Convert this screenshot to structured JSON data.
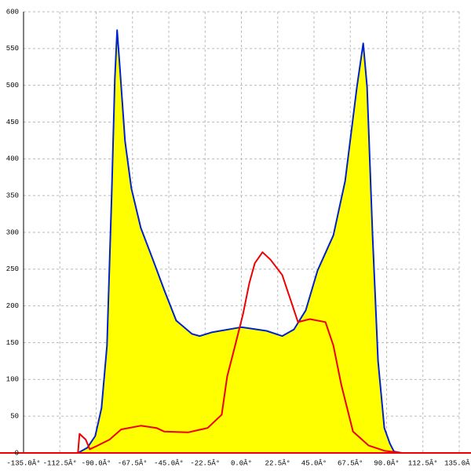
{
  "chart_data": {
    "type": "area",
    "xlim": [
      -135,
      135
    ],
    "ylim": [
      0,
      600
    ],
    "xticks": [
      {
        "value": -135,
        "label": "-135.0Â°"
      },
      {
        "value": -112.5,
        "label": "-112.5Â°"
      },
      {
        "value": -90,
        "label": "-90.0Â°"
      },
      {
        "value": -67.5,
        "label": "-67.5Â°"
      },
      {
        "value": -45,
        "label": "-45.0Â°"
      },
      {
        "value": -22.5,
        "label": "-22.5Â°"
      },
      {
        "value": 0,
        "label": "0.0Â°"
      },
      {
        "value": 22.5,
        "label": "22.5Â°"
      },
      {
        "value": 45,
        "label": "45.0Â°"
      },
      {
        "value": 67.5,
        "label": "67.5Â°"
      },
      {
        "value": 90,
        "label": "90.0Â°"
      },
      {
        "value": 112.5,
        "label": "112.5Â°"
      },
      {
        "value": 135,
        "label": "135.0Â°"
      }
    ],
    "yticks": [
      0,
      50,
      100,
      150,
      200,
      250,
      300,
      350,
      400,
      450,
      500,
      550,
      600
    ],
    "grid": true,
    "series": [
      {
        "color": "#0022cc",
        "fill_color": "#ffff00",
        "x": [
          -101.3,
          -95.5,
          -90.6,
          -86.7,
          -83.3,
          -80.4,
          -78.4,
          -77,
          -75.5,
          -72.1,
          -68.2,
          -62.3,
          -55,
          -47.7,
          -40.4,
          -30.7,
          -25.8,
          -18.5,
          0,
          15.6,
          25.3,
          32.6,
          39.9,
          47.2,
          57,
          64.3,
          71.6,
          75.5,
          77.9,
          81.3,
          84.7,
          88.6,
          92,
          94.5,
          99.4
        ],
        "values": [
          0,
          7,
          23,
          61,
          146,
          349,
          509,
          575,
          530,
          424,
          360,
          306,
          264,
          221,
          180,
          162,
          159,
          164,
          171,
          166,
          159,
          168,
          194,
          248,
          296,
          370,
          498,
          557,
          498,
          296,
          125,
          34,
          13,
          2,
          0
        ]
      },
      {
        "color": "#ee0000",
        "x": [
          -101.3,
          -100.3,
          -96.4,
          -94,
          -89.1,
          -81.8,
          -74.5,
          -62.3,
          -52.6,
          -47.7,
          -33.1,
          -20.9,
          -12.2,
          -8.8,
          -3.9,
          1,
          4.9,
          8.3,
          13.1,
          18,
          25.3,
          30.2,
          35.1,
          42.4,
          52.1,
          57,
          61.9,
          69.2,
          78.9,
          88.6,
          99.4
        ],
        "values": [
          0,
          26,
          18,
          5,
          10,
          18,
          32,
          37,
          34,
          29,
          28,
          34,
          52,
          104,
          146,
          189,
          231,
          258,
          273,
          263,
          242,
          210,
          178,
          182,
          178,
          146,
          93,
          29,
          10,
          3,
          0
        ]
      }
    ]
  }
}
